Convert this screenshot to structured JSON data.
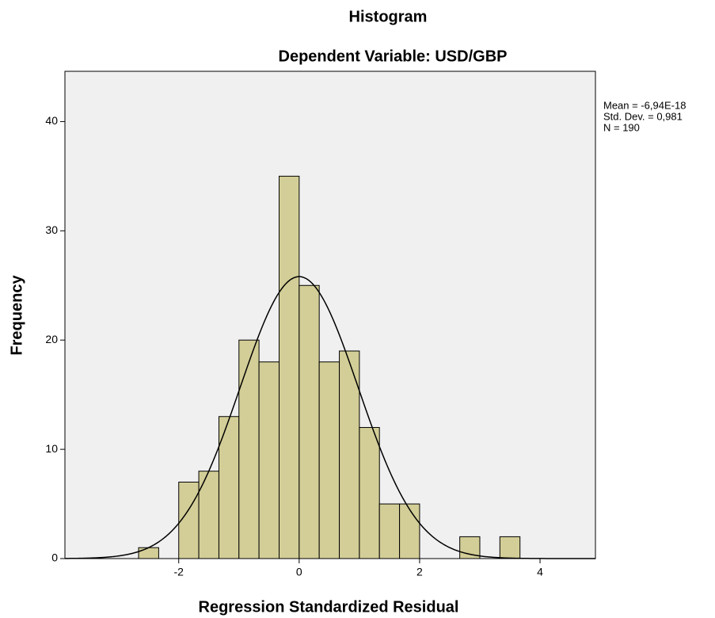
{
  "chart_data": {
    "type": "histogram",
    "title": "Histogram",
    "subtitle": "Dependent Variable: USD/GBP",
    "x_label": "Regression Standardized Residual",
    "y_label": "Frequency",
    "bins": [
      -2.667,
      -2.333,
      -2,
      -1.667,
      -1.333,
      -1,
      -0.667,
      -0.333,
      0,
      0.333,
      0.667,
      1,
      1.333,
      1.667,
      2,
      2.333,
      2.667,
      3,
      3.333,
      3.667
    ],
    "values": [
      1,
      0,
      7,
      8,
      13,
      20,
      18,
      35,
      25,
      18,
      19,
      12,
      5,
      5,
      0,
      0,
      2,
      0,
      2
    ],
    "color": "#d3ce97",
    "background": "#f0f0f0",
    "xlim": [
      -3.89,
      4.92
    ],
    "ylim": [
      0,
      44.6
    ],
    "xticks": [
      -2,
      0,
      2,
      4
    ],
    "yticks": [
      0,
      10,
      20,
      30,
      40
    ],
    "stats": [
      {
        "value": -6.94e-18,
        "label": "Mean = -6,94E-18"
      },
      {
        "value": 0.981,
        "label": "Std. Dev. = 0,981"
      },
      {
        "value": 190,
        "label": "N = 190"
      }
    ]
  }
}
